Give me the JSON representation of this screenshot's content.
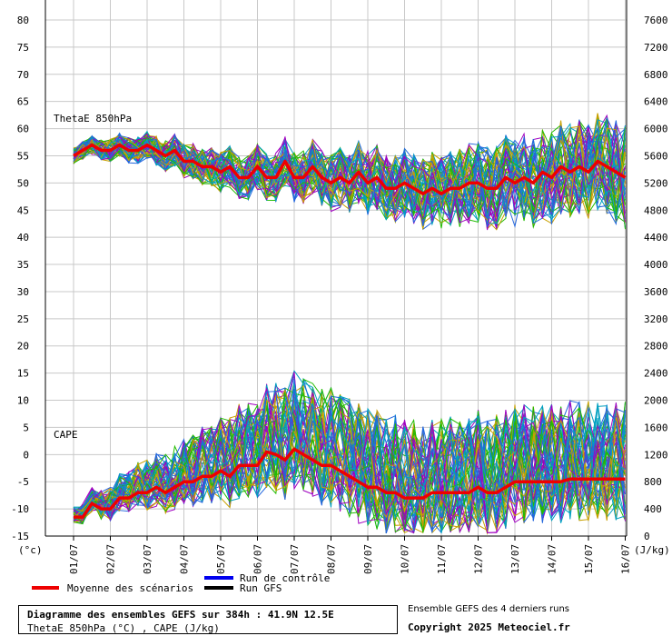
{
  "chart_data": {
    "type": "line",
    "title": "Diagramme des ensembles GEFS sur 384h : 41.9N 12.5E",
    "subtitle": "ThetaE 850hPa (°C) , CAPE (J/kg)",
    "left_unit": "(°c)",
    "right_unit": "(J/kg)",
    "y_left_ticks": [
      -15,
      -10,
      -5,
      0,
      5,
      10,
      15,
      20,
      25,
      30,
      35,
      40,
      45,
      50,
      55,
      60,
      65,
      70,
      75,
      80
    ],
    "y_right_ticks": [
      0,
      400,
      800,
      1200,
      1600,
      2000,
      2400,
      2800,
      3200,
      3600,
      4000,
      4400,
      4800,
      5200,
      5600,
      6000,
      6400,
      6800,
      7200,
      7600
    ],
    "ylim_left": [
      -15,
      80
    ],
    "ylim_right": [
      0,
      7600
    ],
    "x_ticks": [
      "01/07",
      "02/07",
      "03/07",
      "04/07",
      "05/07",
      "06/07",
      "07/07",
      "08/07",
      "09/07",
      "10/07",
      "11/07",
      "12/07",
      "13/07",
      "14/07",
      "15/07",
      "16/07"
    ],
    "panel_labels": {
      "thetae": "ThetaE 850hPa",
      "cape": "CAPE"
    },
    "legend": {
      "mean": {
        "label": "Moyenne des scénarios",
        "color": "#ee0000"
      },
      "control": {
        "label": "Run de contrôle",
        "color": "#0000ee"
      },
      "gfs": {
        "label": "Run GFS",
        "color": "#000000"
      }
    },
    "member_colors": [
      "#22bb00",
      "#a000c0",
      "#c8a000",
      "#00a0c0",
      "#2266dd"
    ],
    "grid": true,
    "series": [
      {
        "name": "Moyenne des scénarios",
        "axis": "left",
        "x": [
          0.0,
          0.25,
          0.5,
          0.75,
          1.0,
          1.25,
          1.5,
          1.75,
          2.0,
          2.25,
          2.5,
          2.75,
          3.0,
          3.25,
          3.5,
          3.75,
          4.0,
          4.25,
          4.5,
          4.75,
          5.0,
          5.25,
          5.5,
          5.75,
          6.0,
          6.25,
          6.5,
          6.75,
          7.0,
          7.25,
          7.5,
          7.75,
          8.0,
          8.25,
          8.5,
          8.75,
          9.0,
          9.25,
          9.5,
          9.75,
          10.0,
          10.25,
          10.5,
          10.75,
          11.0,
          11.25,
          11.5,
          11.75,
          12.0,
          12.25,
          12.5,
          12.75,
          13.0,
          13.25,
          13.5,
          13.75,
          14.0,
          14.25,
          14.5,
          14.75,
          15.0
        ],
        "values": [
          55,
          56,
          57,
          56,
          56,
          57,
          56,
          56,
          57,
          56,
          55,
          56,
          54,
          54,
          53,
          53,
          52,
          53,
          51,
          51,
          53,
          51,
          51,
          54,
          51,
          51,
          53,
          51,
          50,
          51,
          50,
          52,
          50,
          51,
          49,
          49,
          50,
          49,
          48,
          49,
          48,
          49,
          49,
          50,
          50,
          49,
          49,
          51,
          50,
          51,
          50,
          52,
          51,
          53,
          52,
          53,
          52,
          54,
          53,
          52,
          51
        ]
      },
      {
        "name": "Moyenne des scénarios",
        "axis": "left",
        "x": [
          0.0,
          0.25,
          0.5,
          0.75,
          1.0,
          1.25,
          1.5,
          1.75,
          2.0,
          2.25,
          2.5,
          2.75,
          3.0,
          3.25,
          3.5,
          3.75,
          4.0,
          4.25,
          4.5,
          4.75,
          5.0,
          5.25,
          5.5,
          5.75,
          6.0,
          6.25,
          6.5,
          6.75,
          7.0,
          7.25,
          7.5,
          7.75,
          8.0,
          8.25,
          8.5,
          8.75,
          9.0,
          9.25,
          9.5,
          9.75,
          10.0,
          10.25,
          10.5,
          10.75,
          11.0,
          11.25,
          11.5,
          11.75,
          12.0,
          12.25,
          12.5,
          12.75,
          13.0,
          13.25,
          13.5,
          13.75,
          14.0,
          14.25,
          14.5,
          14.75,
          15.0
        ],
        "values": [
          -11.5,
          -11.5,
          -9,
          -10,
          -10,
          -8,
          -8,
          -7,
          -7,
          -6,
          -7,
          -6,
          -5,
          -5,
          -4,
          -4,
          -3,
          -4,
          -2,
          -2,
          -2,
          0.5,
          0,
          -1,
          1,
          0,
          -1,
          -2,
          -2,
          -3,
          -4,
          -5,
          -6,
          -6,
          -7,
          -7,
          -8,
          -8,
          -8,
          -7,
          -7,
          -7,
          -7,
          -7,
          -6,
          -7,
          -7,
          -6,
          -5,
          -5,
          -5,
          -5,
          -5,
          -5,
          -4.5,
          -4.5,
          -4.5,
          -4.5,
          -4.5,
          -4.5,
          -4.5
        ]
      }
    ]
  }
}
